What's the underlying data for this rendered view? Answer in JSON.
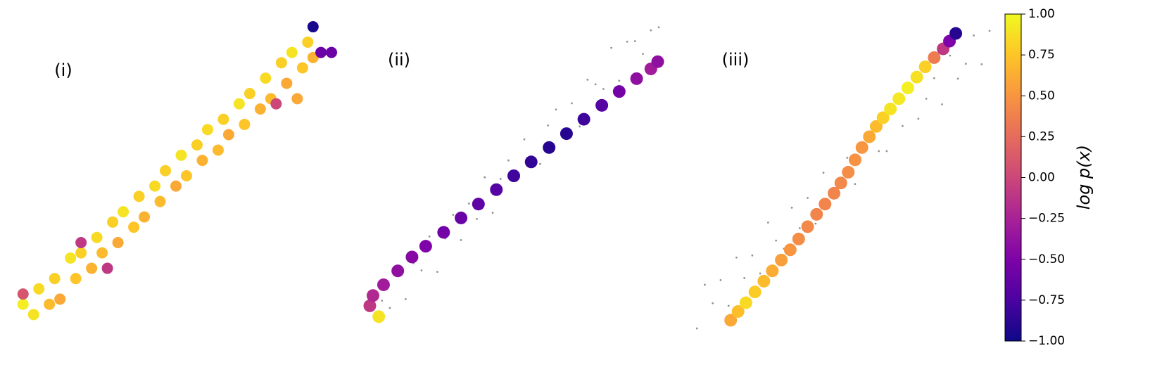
{
  "chart_data": [
    {
      "type": "scatter",
      "title": "(i)",
      "xlim": [
        -3.07,
        3.07
      ],
      "ylim": [
        -3.01,
        3.01
      ],
      "x": [
        -2.9,
        -2.7,
        -2.6,
        -2.4,
        -2.3,
        -2.2,
        -2.0,
        -1.9,
        -1.8,
        -1.6,
        -1.5,
        -1.4,
        -1.2,
        -1.1,
        -1.0,
        -0.8,
        -0.7,
        -0.6,
        -0.4,
        -0.3,
        -0.2,
        0.0,
        0.1,
        0.2,
        0.4,
        0.5,
        0.6,
        0.8,
        0.9,
        1.0,
        1.2,
        1.3,
        1.4,
        1.6,
        1.7,
        1.8,
        2.0,
        2.1,
        2.2,
        2.4,
        2.5,
        2.6,
        2.3,
        -1.8,
        -1.3,
        -2.9,
        1.9,
        2.6,
        2.75,
        2.95
      ],
      "y": [
        -2.5,
        -2.7,
        -2.2,
        -2.5,
        -2.0,
        -2.4,
        -1.6,
        -2.0,
        -1.5,
        -1.8,
        -1.2,
        -1.5,
        -0.9,
        -1.3,
        -0.7,
        -1.0,
        -0.4,
        -0.8,
        -0.2,
        -0.5,
        0.1,
        -0.2,
        0.4,
        0.0,
        0.6,
        0.3,
        0.9,
        0.5,
        1.1,
        0.8,
        1.4,
        1.0,
        1.6,
        1.3,
        1.9,
        1.5,
        2.2,
        1.8,
        2.4,
        2.1,
        2.6,
        2.3,
        1.5,
        -1.3,
        -1.8,
        -2.3,
        1.4,
        2.9,
        2.4,
        2.4
      ],
      "c": [
        0.95,
        0.9,
        0.85,
        0.7,
        0.8,
        0.6,
        0.9,
        0.75,
        0.8,
        0.65,
        0.85,
        0.7,
        0.8,
        0.6,
        0.9,
        0.75,
        0.8,
        0.65,
        0.85,
        0.7,
        0.8,
        0.6,
        0.9,
        0.75,
        0.8,
        0.65,
        0.85,
        0.7,
        0.8,
        0.6,
        0.9,
        0.75,
        0.8,
        0.65,
        0.85,
        0.7,
        0.8,
        0.6,
        0.9,
        0.75,
        0.8,
        0.65,
        0.6,
        -0.1,
        -0.1,
        0.1,
        0.0,
        -0.95,
        -0.6,
        -0.6
      ]
    },
    {
      "type": "scatter",
      "title": "(ii)",
      "xlim": [
        -3.07,
        3.07
      ],
      "ylim": [
        -3.01,
        3.01
      ],
      "background": {
        "color": "#808080",
        "x": [
          -2.8,
          -2.65,
          -2.5,
          -2.35,
          -2.2,
          -2.05,
          -1.9,
          -1.75,
          -1.6,
          -1.45,
          -1.3,
          -1.15,
          -1.0,
          -0.85,
          -0.7,
          -0.55,
          -0.4,
          -0.25,
          -0.1,
          0.05,
          0.2,
          0.35,
          0.5,
          0.65,
          0.8,
          0.95,
          1.1,
          1.25,
          1.4,
          1.55,
          1.7,
          1.85,
          2.0,
          2.15,
          2.3,
          2.45,
          2.6,
          2.75
        ],
        "y": [
          -2.54,
          -2.78,
          -2.43,
          -2.57,
          -1.76,
          -2.4,
          -1.7,
          -1.84,
          -1.18,
          -1.87,
          -1.22,
          -0.76,
          -1.25,
          -0.54,
          -0.84,
          -0.03,
          -0.72,
          -0.06,
          0.3,
          -0.1,
          0.71,
          0.37,
          0.23,
          0.98,
          1.29,
          0.8,
          1.41,
          0.96,
          1.87,
          1.78,
          1.69,
          2.49,
          1.85,
          2.61,
          2.62,
          2.37,
          2.83,
          2.89
        ]
      },
      "x": [
        -2.56,
        -2.73,
        -2.67,
        -2.47,
        -2.2,
        -1.93,
        -1.67,
        -1.33,
        -1.0,
        -0.67,
        -0.33,
        0,
        0.33,
        0.67,
        1.0,
        1.33,
        1.67,
        2.0,
        2.33,
        2.6,
        2.73
      ],
      "y": [
        -2.74,
        -2.53,
        -2.33,
        -2.12,
        -1.85,
        -1.58,
        -1.37,
        -1.1,
        -0.82,
        -0.55,
        -0.27,
        0,
        0.27,
        0.55,
        0.82,
        1.1,
        1.37,
        1.64,
        1.89,
        2.08,
        2.22
      ],
      "c": [
        0.9,
        -0.1,
        -0.2,
        -0.3,
        -0.4,
        -0.45,
        -0.5,
        -0.55,
        -0.6,
        -0.65,
        -0.7,
        -0.8,
        -0.85,
        -0.9,
        -0.9,
        -0.8,
        -0.7,
        -0.55,
        -0.4,
        -0.3,
        -0.4
      ]
    },
    {
      "type": "scatter",
      "title": "(iii)",
      "xlim": [
        -3.07,
        3.07
      ],
      "ylim": [
        -3.01,
        3.01
      ],
      "background": {
        "color": "#808080",
        "x": [
          -2.8,
          -2.65,
          -2.5,
          -2.35,
          -2.2,
          -2.05,
          -1.9,
          -1.75,
          -1.6,
          -1.45,
          -1.3,
          -1.15,
          -1.0,
          -0.85,
          -0.7,
          -0.55,
          -0.4,
          -0.25,
          -0.1,
          0.05,
          0.2,
          0.35,
          0.5,
          0.65,
          0.8,
          0.95,
          1.1,
          1.25,
          1.4,
          1.55,
          1.7,
          1.85,
          2.0,
          2.15,
          2.3,
          2.45,
          2.6,
          2.75
        ],
        "y": [
          -2.97,
          -2.12,
          -2.48,
          -2.03,
          -2.53,
          -1.59,
          -1.99,
          -1.55,
          -1.9,
          -0.91,
          -1.26,
          -1.42,
          -0.62,
          -1.02,
          -0.43,
          -0.93,
          0.06,
          -0.29,
          -0.35,
          0.35,
          -0.16,
          0.49,
          0.94,
          0.48,
          0.48,
          1.27,
          0.97,
          1.71,
          1.11,
          1.5,
          1.9,
          1.39,
          2.34,
          1.89,
          2.18,
          2.73,
          2.17,
          2.82
        ]
      },
      "x": [
        -2.16,
        -2.02,
        -1.87,
        -1.7,
        -1.53,
        -1.37,
        -1.2,
        -1.03,
        -0.87,
        -0.7,
        -0.53,
        -0.37,
        -0.2,
        -0.07,
        0.07,
        0.2,
        0.33,
        0.47,
        0.6,
        0.73,
        0.87,
        1.03,
        1.2,
        1.37,
        1.53,
        1.7,
        1.87,
        1.99,
        2.11
      ],
      "y": [
        -2.81,
        -2.64,
        -2.47,
        -2.26,
        -2.05,
        -1.85,
        -1.64,
        -1.44,
        -1.23,
        -0.99,
        -0.75,
        -0.55,
        -0.34,
        -0.14,
        0.07,
        0.31,
        0.55,
        0.76,
        0.96,
        1.13,
        1.3,
        1.5,
        1.71,
        1.92,
        2.12,
        2.3,
        2.47,
        2.62,
        2.77
      ],
      "c": [
        0.6,
        0.72,
        0.85,
        0.78,
        0.7,
        0.62,
        0.55,
        0.5,
        0.45,
        0.42,
        0.4,
        0.4,
        0.4,
        0.42,
        0.45,
        0.48,
        0.5,
        0.6,
        0.7,
        0.8,
        0.9,
        0.92,
        0.95,
        0.88,
        0.8,
        0.35,
        -0.1,
        -0.5,
        -0.9
      ]
    }
  ],
  "colorbar": {
    "label": "log p(x)",
    "colormap": "plasma",
    "lim": [
      -1,
      1
    ],
    "ticks": [
      {
        "value": -1,
        "label": "−1.00"
      },
      {
        "value": -0.75,
        "label": "−0.75"
      },
      {
        "value": -0.5,
        "label": "−0.50"
      },
      {
        "value": -0.25,
        "label": "−0.25"
      },
      {
        "value": 0,
        "label": "0.00"
      },
      {
        "value": 0.25,
        "label": "0.25"
      },
      {
        "value": 0.5,
        "label": "0.50"
      },
      {
        "value": 0.75,
        "label": "0.75"
      },
      {
        "value": 1,
        "label": "1.00"
      }
    ]
  }
}
